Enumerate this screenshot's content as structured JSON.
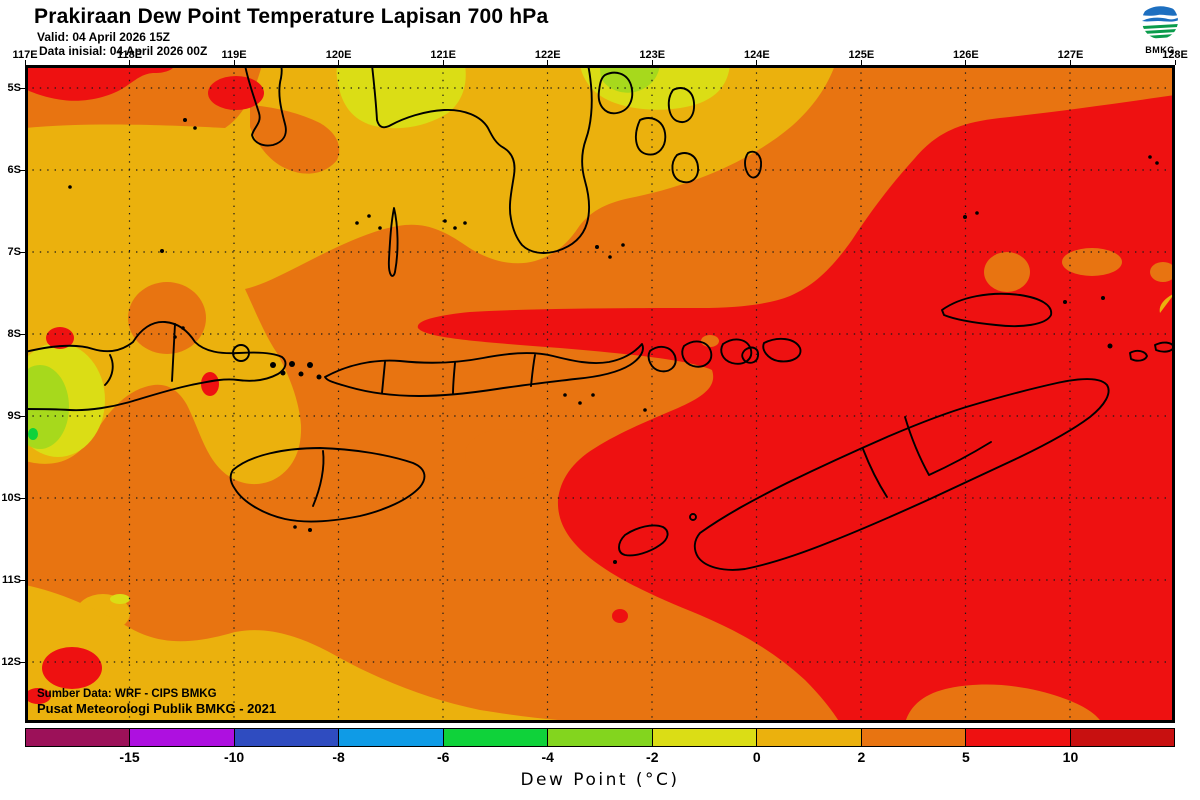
{
  "header": {
    "title": "Prakiraan Dew Point Temperature Lapisan 700 hPa",
    "valid": "Valid: 04 April 2026 15Z",
    "data_initial": "Data inisial: 04 April 2026 00Z"
  },
  "logo": {
    "label": "BMKG"
  },
  "map": {
    "lon_labels": [
      "117E",
      "118E",
      "119E",
      "120E",
      "121E",
      "122E",
      "123E",
      "124E",
      "125E",
      "126E",
      "127E",
      "128E"
    ],
    "lat_labels": [
      "5S",
      "6S",
      "7S",
      "8S",
      "9S",
      "10S",
      "11S",
      "12S"
    ],
    "credits_line1": "Sumber Data: WRF - CIPS BMKG",
    "credits_line2": "Pusat Meteorologi Publik BMKG - 2021",
    "palette": {
      "orange": "#E87411",
      "red": "#EE1111",
      "dark_red": "#C81010",
      "gold": "#EBB10D",
      "yellow": "#DBDD15",
      "yellow_green": "#A7D91C",
      "green": "#0FD23A",
      "coastline": "#000000"
    }
  },
  "colorbar": {
    "title": "Dew Point (°C)",
    "boundary_labels": [
      "-15",
      "-10",
      "-8",
      "-6",
      "-4",
      "-2",
      "0",
      "2",
      "5",
      "10"
    ],
    "segment_colors": [
      "#9C1159",
      "#AE10E0",
      "#2F4CC0",
      "#0F9BE6",
      "#0FD23A",
      "#83D51E",
      "#DBDD15",
      "#EBB10D",
      "#E87411",
      "#EE1111",
      "#C81010"
    ]
  }
}
